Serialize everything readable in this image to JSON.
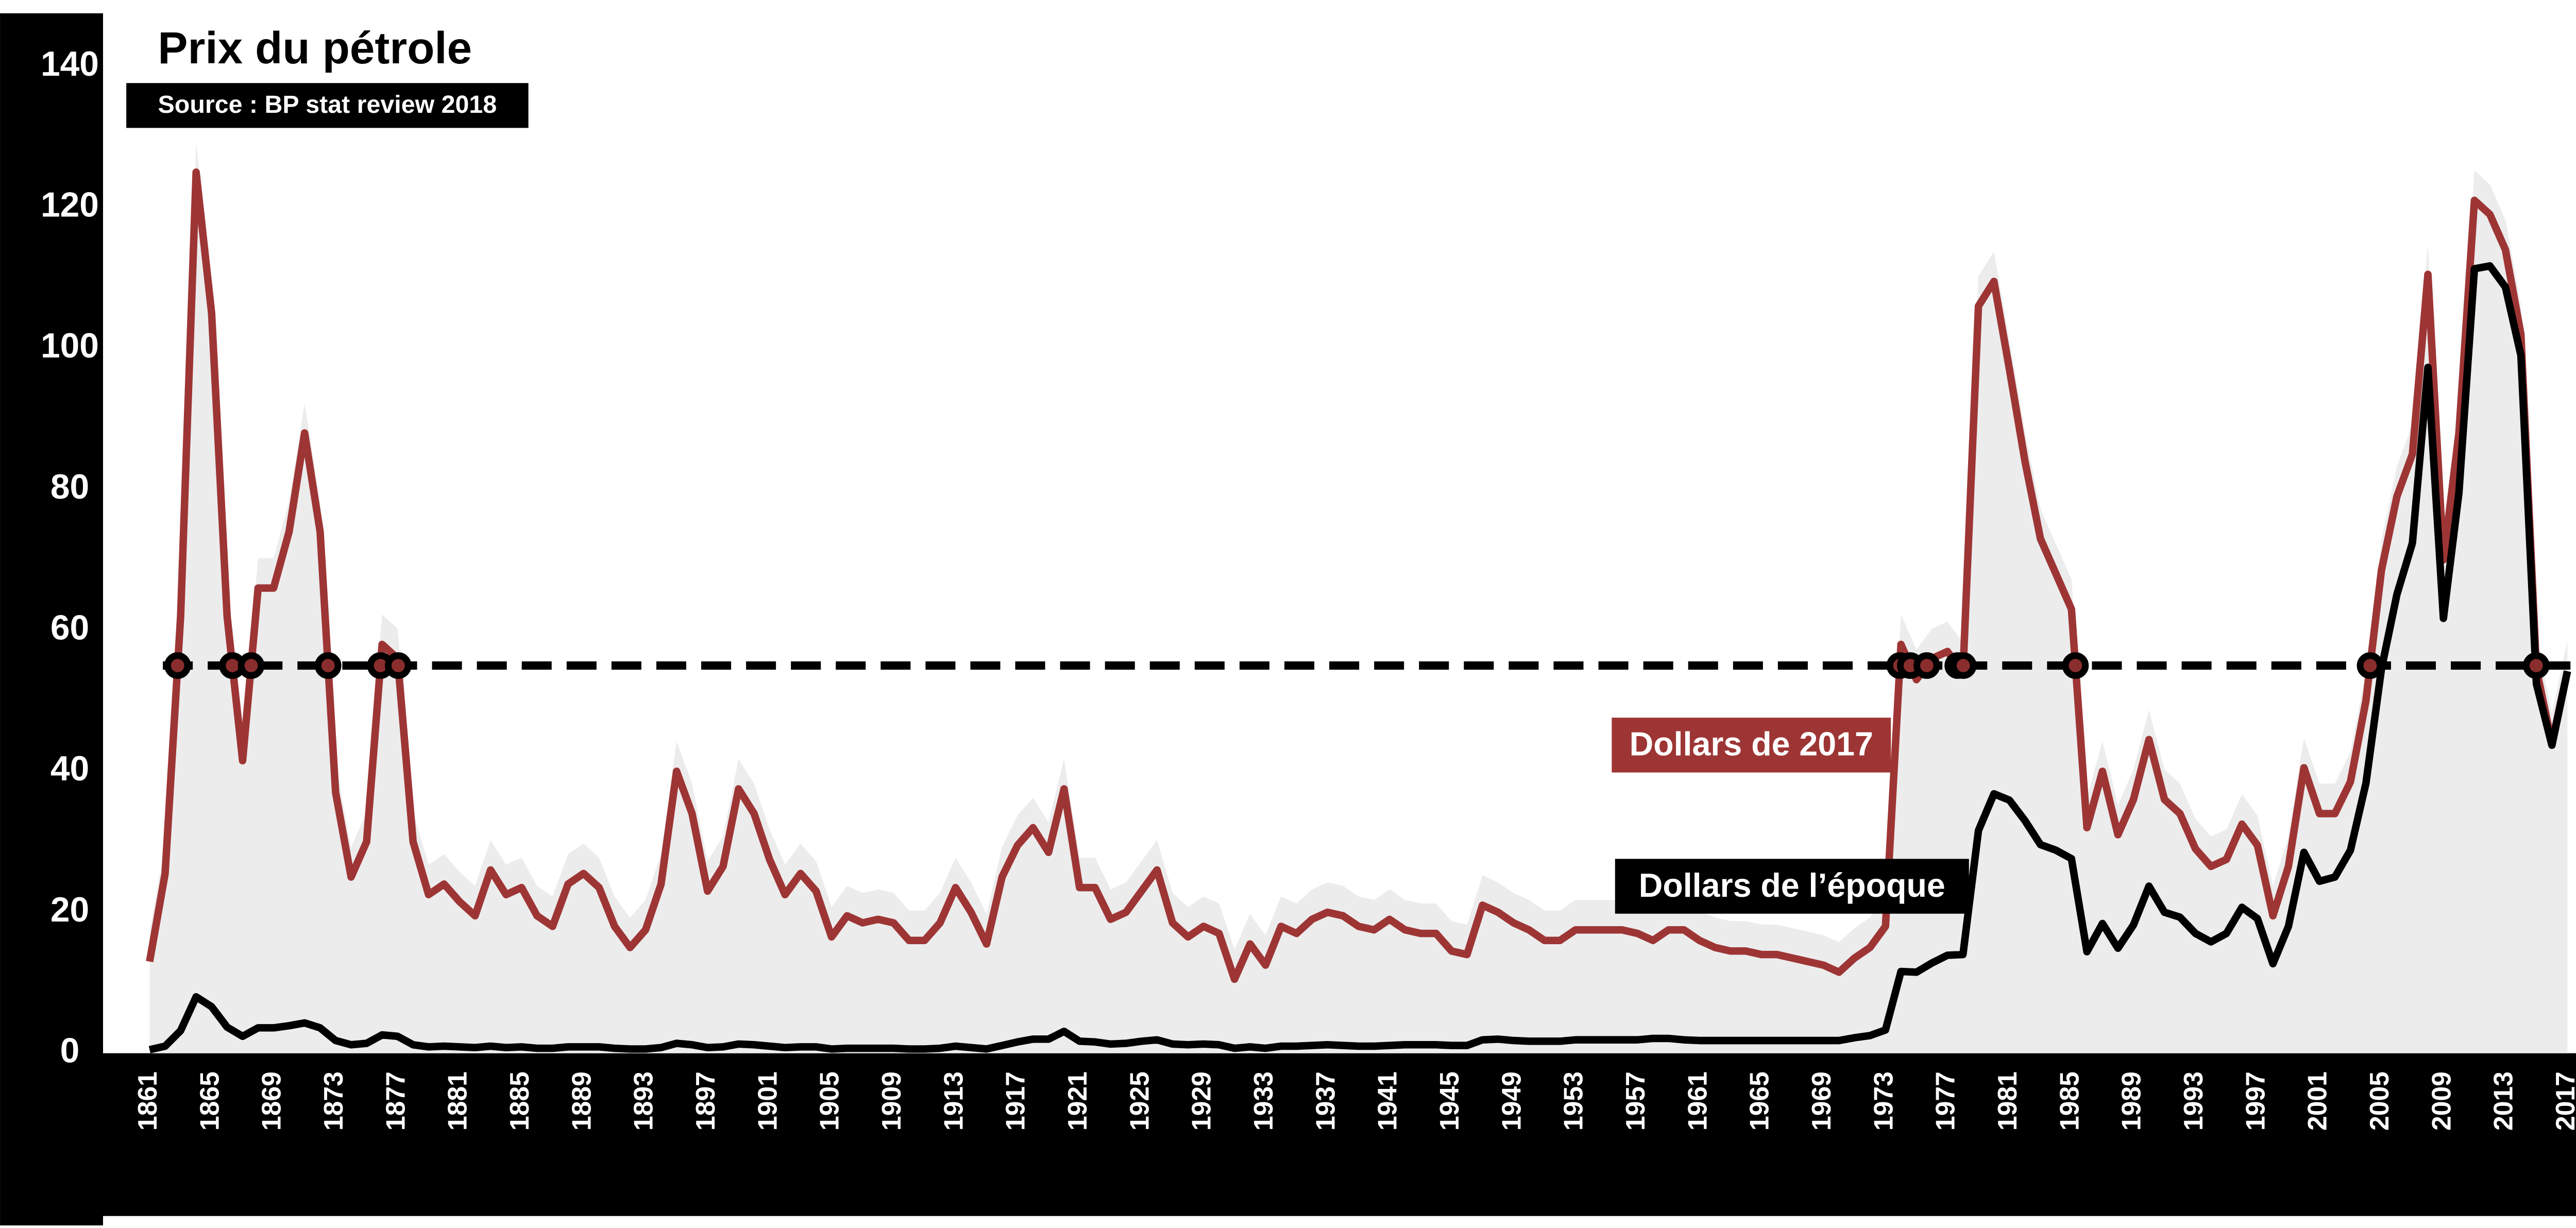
{
  "chart_data": {
    "type": "line",
    "title": "Prix du pétrole",
    "subtitle": "Source : BP stat review 2018",
    "x": [
      1861,
      1862,
      1863,
      1864,
      1865,
      1866,
      1867,
      1868,
      1869,
      1870,
      1871,
      1872,
      1873,
      1874,
      1875,
      1876,
      1877,
      1878,
      1879,
      1880,
      1881,
      1882,
      1883,
      1884,
      1885,
      1886,
      1887,
      1888,
      1889,
      1890,
      1891,
      1892,
      1893,
      1894,
      1895,
      1896,
      1897,
      1898,
      1899,
      1900,
      1901,
      1902,
      1903,
      1904,
      1905,
      1906,
      1907,
      1908,
      1909,
      1910,
      1911,
      1912,
      1913,
      1914,
      1915,
      1916,
      1917,
      1918,
      1919,
      1920,
      1921,
      1922,
      1923,
      1924,
      1925,
      1926,
      1927,
      1928,
      1929,
      1930,
      1931,
      1932,
      1933,
      1934,
      1935,
      1936,
      1937,
      1938,
      1939,
      1940,
      1941,
      1942,
      1943,
      1944,
      1945,
      1946,
      1947,
      1948,
      1949,
      1950,
      1951,
      1952,
      1953,
      1954,
      1955,
      1956,
      1957,
      1958,
      1959,
      1960,
      1961,
      1962,
      1963,
      1964,
      1965,
      1966,
      1967,
      1968,
      1969,
      1970,
      1971,
      1972,
      1973,
      1974,
      1975,
      1976,
      1977,
      1978,
      1979,
      1980,
      1981,
      1982,
      1983,
      1984,
      1985,
      1986,
      1987,
      1988,
      1989,
      1990,
      1991,
      1992,
      1993,
      1994,
      1995,
      1996,
      1997,
      1998,
      1999,
      2000,
      2001,
      2002,
      2003,
      2004,
      2005,
      2006,
      2007,
      2008,
      2009,
      2010,
      2011,
      2012,
      2013,
      2014,
      2015,
      2016,
      2017
    ],
    "series": [
      {
        "name": "Dollars de 2017",
        "color": "#9e3535",
        "values": [
          13,
          25.5,
          62,
          125,
          105,
          62,
          41.5,
          66,
          66,
          74,
          88,
          74,
          37,
          25,
          30,
          58,
          56,
          30,
          22.5,
          24,
          21.5,
          19.5,
          26,
          22.5,
          23.5,
          19.5,
          18,
          24,
          25.5,
          23.5,
          18,
          15,
          17.5,
          24,
          40,
          34,
          23,
          26.5,
          37.5,
          34,
          27.5,
          22.5,
          25.5,
          23,
          16.5,
          19.5,
          18.5,
          19,
          18.5,
          16,
          16,
          18.5,
          23.5,
          20,
          15.5,
          25,
          29.5,
          32,
          28.5,
          37.5,
          23.5,
          23.5,
          19,
          20,
          23,
          26,
          18.5,
          16.5,
          18,
          17,
          10.5,
          15.5,
          12.5,
          18,
          17,
          19,
          20,
          19.5,
          18,
          17.5,
          19,
          17.5,
          17,
          17,
          14.5,
          14,
          21,
          20,
          18.5,
          17.5,
          16,
          16,
          17.5,
          17.5,
          17.5,
          17.5,
          17,
          16,
          17.5,
          17.5,
          16,
          15,
          14.5,
          14.5,
          14,
          14,
          13.5,
          13,
          12.5,
          11.5,
          13.5,
          15,
          18,
          58,
          53,
          56,
          57,
          54,
          106,
          109.5,
          97,
          84,
          73,
          68,
          63,
          32,
          40,
          31,
          36,
          44.5,
          36,
          34,
          29,
          26.5,
          27.5,
          32.5,
          29.5,
          19.5,
          26.5,
          40.5,
          34,
          34,
          38.5,
          50,
          68.5,
          79,
          85,
          110.5,
          70,
          88,
          121,
          119,
          114,
          102,
          54.5,
          44,
          54.2
        ]
      },
      {
        "name": "Dollars de l’époque",
        "color": "#000000",
        "values": [
          0.5,
          1,
          3.2,
          8,
          6.6,
          3.7,
          2.4,
          3.6,
          3.6,
          3.9,
          4.3,
          3.6,
          1.8,
          1.2,
          1.4,
          2.6,
          2.4,
          1.2,
          0.9,
          1,
          0.9,
          0.8,
          1,
          0.8,
          0.9,
          0.7,
          0.7,
          0.9,
          0.9,
          0.9,
          0.7,
          0.6,
          0.6,
          0.8,
          1.4,
          1.2,
          0.8,
          0.9,
          1.3,
          1.2,
          1,
          0.8,
          0.9,
          0.9,
          0.6,
          0.7,
          0.7,
          0.7,
          0.7,
          0.6,
          0.6,
          0.7,
          1,
          0.8,
          0.6,
          1.1,
          1.6,
          2,
          2,
          3.1,
          1.7,
          1.6,
          1.3,
          1.4,
          1.7,
          1.9,
          1.3,
          1.2,
          1.3,
          1.2,
          0.7,
          0.9,
          0.7,
          1,
          1,
          1.1,
          1.2,
          1.1,
          1,
          1,
          1.1,
          1.2,
          1.2,
          1.2,
          1.1,
          1.1,
          1.9,
          2,
          1.8,
          1.7,
          1.7,
          1.7,
          1.9,
          1.9,
          1.9,
          1.9,
          1.9,
          2.1,
          2.1,
          1.9,
          1.8,
          1.8,
          1.8,
          1.8,
          1.8,
          1.8,
          1.8,
          1.8,
          1.8,
          1.8,
          2.2,
          2.5,
          3.3,
          11.6,
          11.5,
          12.8,
          13.9,
          14,
          31.6,
          36.8,
          35.9,
          33,
          29.6,
          28.8,
          27.6,
          14.4,
          18.4,
          14.9,
          18.2,
          23.7,
          20,
          19.3,
          17,
          15.8,
          17,
          20.7,
          19.1,
          12.7,
          18,
          28.5,
          24.4,
          25,
          28.8,
          38.3,
          54.5,
          65.1,
          72.4,
          97.3,
          61.7,
          79.5,
          111.3,
          111.7,
          108.7,
          99,
          52.4,
          43.7,
          54.2
        ]
      }
    ],
    "reference_line": 55,
    "xlim": [
      1860,
      2018
    ],
    "xticks": [
      1861,
      1865,
      1869,
      1873,
      1877,
      1881,
      1885,
      1889,
      1893,
      1897,
      1901,
      1905,
      1909,
      1913,
      1917,
      1921,
      1925,
      1929,
      1933,
      1937,
      1941,
      1945,
      1949,
      1953,
      1957,
      1961,
      1965,
      1969,
      1973,
      1977,
      1981,
      1985,
      1989,
      1993,
      1997,
      2001,
      2005,
      2009,
      2013,
      2017
    ],
    "ylim": [
      0,
      140
    ],
    "yticks": [
      0,
      20,
      40,
      60,
      80,
      100,
      120,
      140
    ],
    "grid": false
  }
}
